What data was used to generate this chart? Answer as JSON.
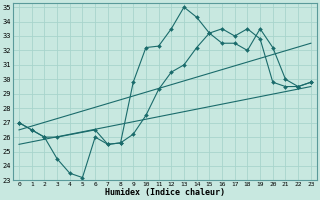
{
  "xlabel": "Humidex (Indice chaleur)",
  "bg_color": "#c8e8e0",
  "grid_color": "#a8d4cc",
  "line_color": "#1a6b6b",
  "xlim": [
    -0.5,
    23.5
  ],
  "ylim": [
    23,
    35.3
  ],
  "xticks": [
    0,
    1,
    2,
    3,
    4,
    5,
    6,
    7,
    8,
    9,
    10,
    11,
    12,
    13,
    14,
    15,
    16,
    17,
    18,
    19,
    20,
    21,
    22,
    23
  ],
  "yticks": [
    23,
    24,
    25,
    26,
    27,
    28,
    29,
    30,
    31,
    32,
    33,
    34,
    35
  ],
  "line1_x": [
    0,
    1,
    2,
    3,
    4,
    5,
    6,
    7,
    8,
    9,
    10,
    11,
    12,
    13,
    14,
    15,
    16,
    17,
    18,
    19,
    20,
    21,
    22,
    23
  ],
  "line1_y": [
    27.0,
    26.5,
    26.0,
    24.5,
    23.5,
    23.2,
    26.0,
    25.5,
    25.6,
    29.8,
    32.2,
    32.3,
    33.5,
    35.0,
    34.3,
    33.2,
    33.5,
    33.0,
    33.5,
    32.8,
    29.8,
    29.5,
    29.5,
    29.8
  ],
  "line2_x": [
    0,
    1,
    2,
    3,
    6,
    7,
    8,
    9,
    10,
    11,
    12,
    13,
    14,
    15,
    16,
    17,
    18,
    19,
    20,
    21,
    22,
    23
  ],
  "line2_y": [
    27.0,
    26.5,
    26.0,
    26.0,
    26.5,
    25.5,
    25.6,
    26.2,
    27.5,
    29.3,
    30.5,
    31.0,
    32.2,
    33.2,
    32.5,
    32.5,
    32.0,
    33.5,
    32.2,
    30.0,
    29.5,
    29.8
  ],
  "line3_x": [
    0,
    23
  ],
  "line3_y": [
    26.5,
    32.5
  ],
  "line4_x": [
    0,
    23
  ],
  "line4_y": [
    25.5,
    29.5
  ]
}
